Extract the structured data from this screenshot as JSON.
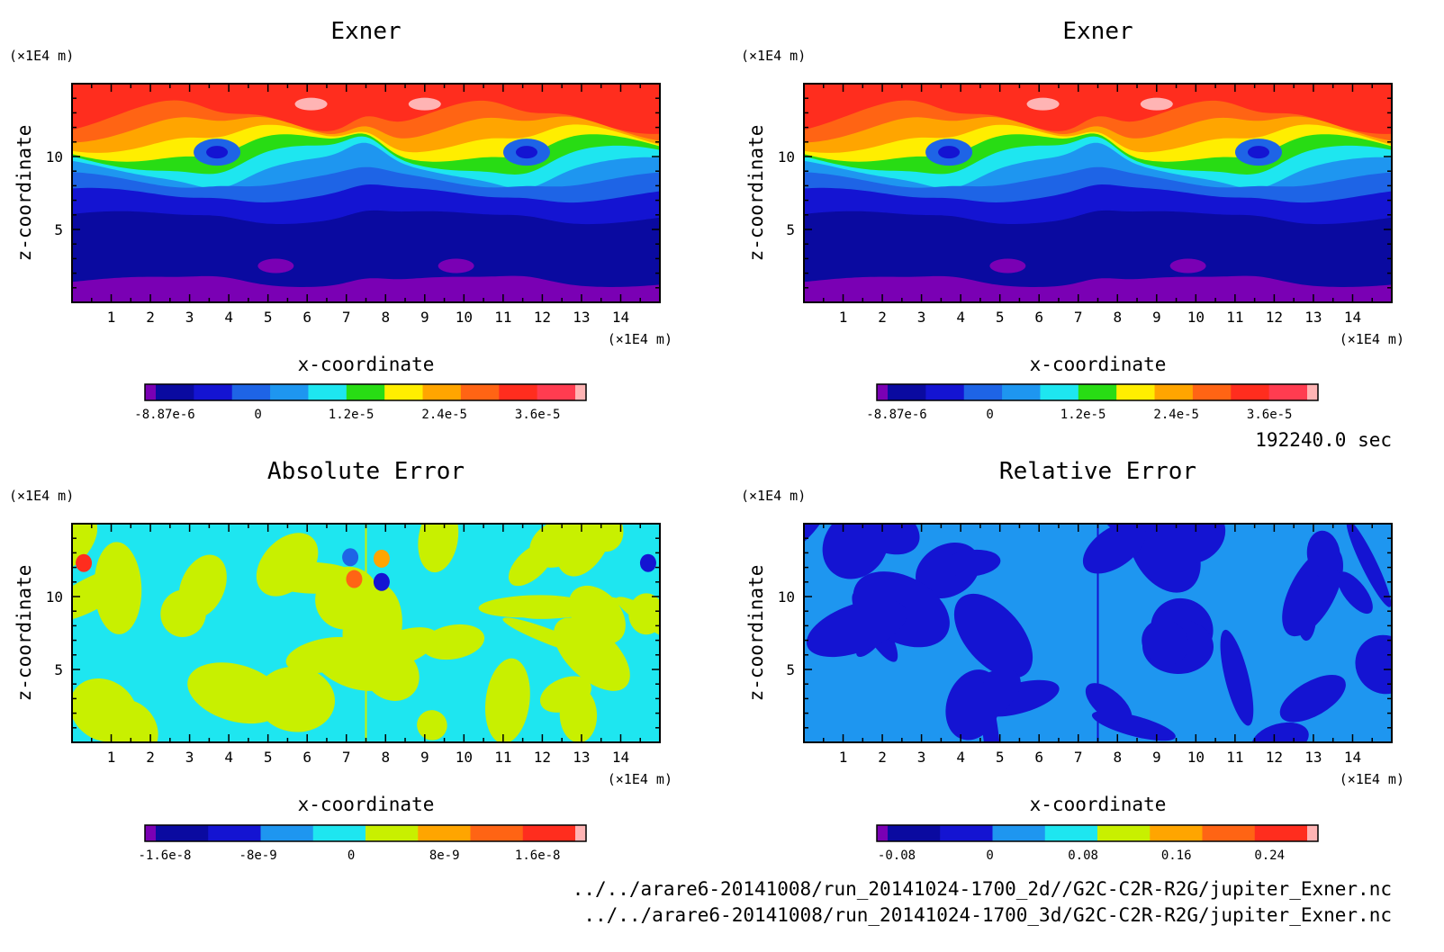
{
  "figure": {
    "time_label": "192240.0 sec",
    "file_paths": [
      "../../arare6-20141008/run_20141024-1700_2d//G2C-C2R-R2G/jupiter_Exner.nc",
      "../../arare6-20141008/run_20141024-1700_3d/G2C-C2R-R2G/jupiter_Exner.nc"
    ]
  },
  "chart_data": [
    {
      "type": "heatmap",
      "title": "Exner",
      "xlabel": "x-coordinate",
      "ylabel": "z-coordinate",
      "x_unit": "(×1E4 m)",
      "y_unit": "(×1E4 m)",
      "xlim": [
        0,
        15
      ],
      "ylim": [
        0,
        15
      ],
      "x_ticks": [
        "1",
        "2",
        "3",
        "4",
        "5",
        "6",
        "7",
        "8",
        "9",
        "10",
        "11",
        "12",
        "13",
        "14"
      ],
      "y_ticks": [
        "5",
        "10"
      ],
      "colorbar": {
        "colors": [
          "#7a00b4",
          "#0a0aa0",
          "#1414d2",
          "#1e64e6",
          "#1e96f0",
          "#1ee6f0",
          "#28dc14",
          "#ffee00",
          "#ffa500",
          "#ff6414",
          "#ff2d1e",
          "#ff3c50",
          "#ffb4b4"
        ],
        "labels": [
          "-8.87e-6",
          "0",
          "1.2e-5",
          "2.4e-5",
          "3.6e-5"
        ]
      },
      "field": "layered",
      "levels": [
        {
          "color": "#7a00b4",
          "z": [
            0,
            1.4
          ]
        },
        {
          "color": "#0a0aa0",
          "z": [
            1.4,
            5.8
          ]
        },
        {
          "color": "#1414d2",
          "z": [
            5.8,
            7.3
          ]
        },
        {
          "color": "#1e64e6",
          "z": [
            7.3,
            8.3
          ]
        },
        {
          "color": "#1e96f0",
          "z": [
            8.3,
            9.2
          ]
        },
        {
          "color": "#1ee6f0",
          "z": [
            9.2,
            9.9
          ]
        },
        {
          "color": "#28dc14",
          "z": [
            9.9,
            10.6
          ]
        },
        {
          "color": "#ffee00",
          "z": [
            10.6,
            11.3
          ]
        },
        {
          "color": "#ffa500",
          "z": [
            11.3,
            12.1
          ]
        },
        {
          "color": "#ff6414",
          "z": [
            12.1,
            12.8
          ]
        },
        {
          "color": "#ff2d1e",
          "z": [
            12.8,
            15
          ]
        }
      ]
    },
    {
      "type": "heatmap",
      "title": "Exner",
      "xlabel": "x-coordinate",
      "ylabel": "z-coordinate",
      "x_unit": "(×1E4 m)",
      "y_unit": "(×1E4 m)",
      "xlim": [
        0,
        15
      ],
      "ylim": [
        0,
        15
      ],
      "x_ticks": [
        "1",
        "2",
        "3",
        "4",
        "5",
        "6",
        "7",
        "8",
        "9",
        "10",
        "11",
        "12",
        "13",
        "14"
      ],
      "y_ticks": [
        "5",
        "10"
      ],
      "colorbar": {
        "colors": [
          "#7a00b4",
          "#0a0aa0",
          "#1414d2",
          "#1e64e6",
          "#1e96f0",
          "#1ee6f0",
          "#28dc14",
          "#ffee00",
          "#ffa500",
          "#ff6414",
          "#ff2d1e",
          "#ff3c50",
          "#ffb4b4"
        ],
        "labels": [
          "-8.87e-6",
          "0",
          "1.2e-5",
          "2.4e-5",
          "3.6e-5"
        ]
      },
      "field": "layered",
      "levels": [
        {
          "color": "#7a00b4",
          "z": [
            0,
            1.4
          ]
        },
        {
          "color": "#0a0aa0",
          "z": [
            1.4,
            5.8
          ]
        },
        {
          "color": "#1414d2",
          "z": [
            5.8,
            7.3
          ]
        },
        {
          "color": "#1e64e6",
          "z": [
            7.3,
            8.3
          ]
        },
        {
          "color": "#1e96f0",
          "z": [
            8.3,
            9.2
          ]
        },
        {
          "color": "#1ee6f0",
          "z": [
            9.2,
            9.9
          ]
        },
        {
          "color": "#28dc14",
          "z": [
            9.9,
            10.6
          ]
        },
        {
          "color": "#ffee00",
          "z": [
            10.6,
            11.3
          ]
        },
        {
          "color": "#ffa500",
          "z": [
            11.3,
            12.1
          ]
        },
        {
          "color": "#ff6414",
          "z": [
            12.1,
            12.8
          ]
        },
        {
          "color": "#ff2d1e",
          "z": [
            12.8,
            15
          ]
        }
      ]
    },
    {
      "type": "heatmap",
      "title": "Absolute Error",
      "xlabel": "x-coordinate",
      "ylabel": "z-coordinate",
      "x_unit": "(×1E4 m)",
      "y_unit": "(×1E4 m)",
      "xlim": [
        0,
        15
      ],
      "ylim": [
        0,
        15
      ],
      "x_ticks": [
        "1",
        "2",
        "3",
        "4",
        "5",
        "6",
        "7",
        "8",
        "9",
        "10",
        "11",
        "12",
        "13",
        "14"
      ],
      "y_ticks": [
        "5",
        "10"
      ],
      "colorbar": {
        "colors": [
          "#7a00b4",
          "#0a0aa0",
          "#1414d2",
          "#1e96f0",
          "#1ee6f0",
          "#c8f000",
          "#ffa500",
          "#ff6414",
          "#ff2d1e",
          "#ffb4b4"
        ],
        "labels": [
          "-1.6e-8",
          "-8e-9",
          "0",
          "8e-9",
          "1.6e-8"
        ]
      },
      "field": "patchy",
      "base_color": "#1ee6f0",
      "patch_color": "#c8f000"
    },
    {
      "type": "heatmap",
      "title": "Relative Error",
      "xlabel": "x-coordinate",
      "ylabel": "z-coordinate",
      "x_unit": "(×1E4 m)",
      "y_unit": "(×1E4 m)",
      "xlim": [
        0,
        15
      ],
      "ylim": [
        0,
        15
      ],
      "x_ticks": [
        "1",
        "2",
        "3",
        "4",
        "5",
        "6",
        "7",
        "8",
        "9",
        "10",
        "11",
        "12",
        "13",
        "14"
      ],
      "y_ticks": [
        "5",
        "10"
      ],
      "colorbar": {
        "colors": [
          "#7a00b4",
          "#0a0aa0",
          "#1414d2",
          "#1e96f0",
          "#1ee6f0",
          "#c8f000",
          "#ffa500",
          "#ff6414",
          "#ff2d1e",
          "#ffb4b4"
        ],
        "labels": [
          "-0.08",
          "0",
          "0.08",
          "0.16",
          "0.24"
        ]
      },
      "field": "patchy",
      "base_color": "#1e96f0",
      "patch_color": "#1414d2"
    }
  ]
}
